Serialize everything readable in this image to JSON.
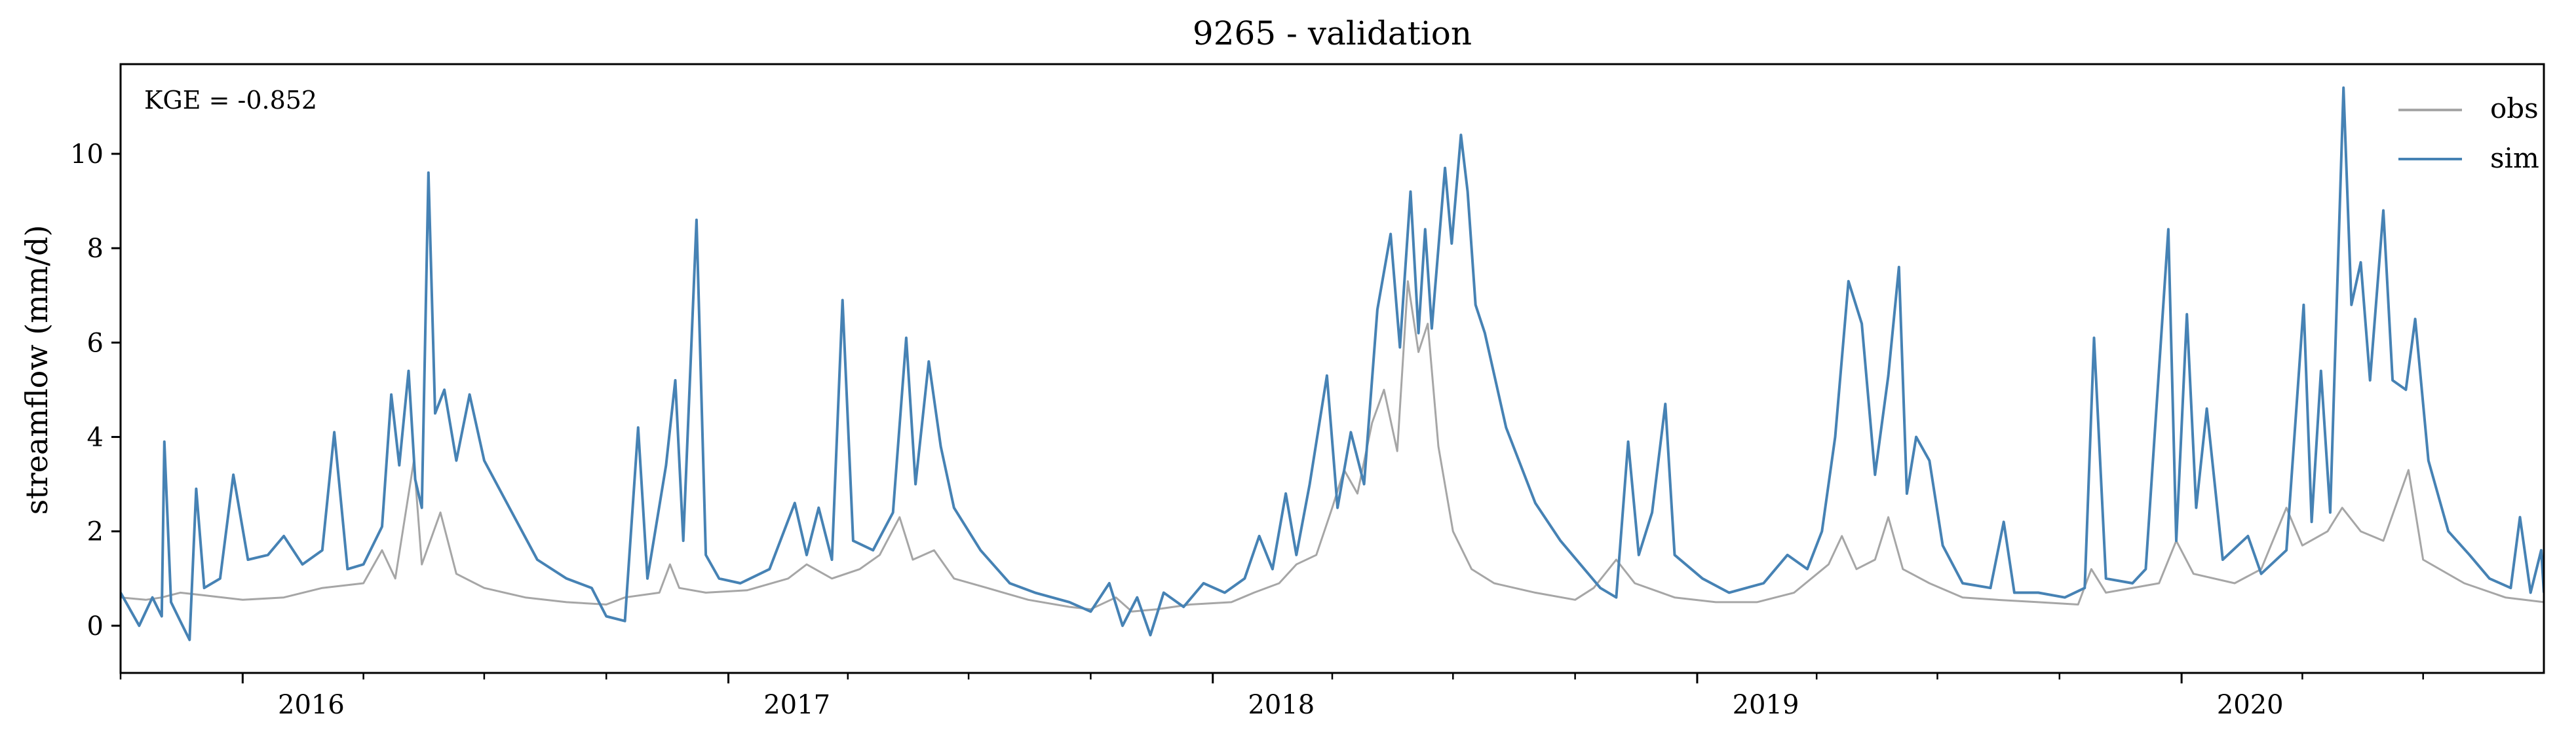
{
  "chart_data": {
    "type": "line",
    "title": "9265 - validation",
    "xlabel": "",
    "ylabel": "streamflow (mm/d)",
    "annotation": "KGE = -0.852",
    "xlim": [
      "2015-10-01",
      "2020-09-30"
    ],
    "ylim": [
      -1,
      11.9
    ],
    "yticks": [
      0,
      2,
      4,
      6,
      8,
      10
    ],
    "xtick_labels": [
      "2016",
      "2017",
      "2018",
      "2019",
      "2020"
    ],
    "xtick_dates": [
      "2016-01-01",
      "2017-01-01",
      "2018-01-01",
      "2019-01-01",
      "2020-01-01"
    ],
    "grid": false,
    "legend_position": "top-right",
    "series": [
      {
        "name": "obs",
        "color": "#a6a6a6",
        "points": [
          [
            "2015-10-01",
            0.6
          ],
          [
            "2015-10-20",
            0.55
          ],
          [
            "2015-11-01",
            0.6
          ],
          [
            "2015-11-15",
            0.7
          ],
          [
            "2015-12-01",
            0.65
          ],
          [
            "2016-01-01",
            0.55
          ],
          [
            "2016-02-01",
            0.6
          ],
          [
            "2016-03-01",
            0.8
          ],
          [
            "2016-04-01",
            0.9
          ],
          [
            "2016-04-15",
            1.6
          ],
          [
            "2016-04-25",
            1.0
          ],
          [
            "2016-05-09",
            3.5
          ],
          [
            "2016-05-15",
            1.3
          ],
          [
            "2016-05-29",
            2.4
          ],
          [
            "2016-06-10",
            1.1
          ],
          [
            "2016-07-01",
            0.8
          ],
          [
            "2016-08-01",
            0.6
          ],
          [
            "2016-09-01",
            0.5
          ],
          [
            "2016-10-01",
            0.45
          ],
          [
            "2016-10-15",
            0.6
          ],
          [
            "2016-11-10",
            0.7
          ],
          [
            "2016-11-18",
            1.3
          ],
          [
            "2016-11-25",
            0.8
          ],
          [
            "2016-12-15",
            0.7
          ],
          [
            "2017-01-15",
            0.75
          ],
          [
            "2017-02-15",
            1.0
          ],
          [
            "2017-03-01",
            1.3
          ],
          [
            "2017-03-20",
            1.0
          ],
          [
            "2017-04-10",
            1.2
          ],
          [
            "2017-04-25",
            1.5
          ],
          [
            "2017-05-10",
            2.3
          ],
          [
            "2017-05-20",
            1.4
          ],
          [
            "2017-06-05",
            1.6
          ],
          [
            "2017-06-20",
            1.0
          ],
          [
            "2017-07-15",
            0.8
          ],
          [
            "2017-08-15",
            0.55
          ],
          [
            "2017-09-15",
            0.4
          ],
          [
            "2017-10-01",
            0.35
          ],
          [
            "2017-10-20",
            0.6
          ],
          [
            "2017-11-01",
            0.3
          ],
          [
            "2017-11-20",
            0.35
          ],
          [
            "2017-12-15",
            0.45
          ],
          [
            "2018-01-15",
            0.5
          ],
          [
            "2018-02-01",
            0.7
          ],
          [
            "2018-02-20",
            0.9
          ],
          [
            "2018-03-05",
            1.3
          ],
          [
            "2018-03-20",
            1.5
          ],
          [
            "2018-04-01",
            2.5
          ],
          [
            "2018-04-10",
            3.3
          ],
          [
            "2018-04-20",
            2.8
          ],
          [
            "2018-05-01",
            4.3
          ],
          [
            "2018-05-10",
            5.0
          ],
          [
            "2018-05-20",
            3.7
          ],
          [
            "2018-05-28",
            7.3
          ],
          [
            "2018-06-05",
            5.8
          ],
          [
            "2018-06-12",
            6.4
          ],
          [
            "2018-06-20",
            3.8
          ],
          [
            "2018-07-01",
            2.0
          ],
          [
            "2018-07-15",
            1.2
          ],
          [
            "2018-08-01",
            0.9
          ],
          [
            "2018-09-01",
            0.7
          ],
          [
            "2018-10-01",
            0.55
          ],
          [
            "2018-10-15",
            0.8
          ],
          [
            "2018-11-01",
            1.4
          ],
          [
            "2018-11-15",
            0.9
          ],
          [
            "2018-12-15",
            0.6
          ],
          [
            "2019-01-15",
            0.5
          ],
          [
            "2019-02-15",
            0.5
          ],
          [
            "2019-03-15",
            0.7
          ],
          [
            "2019-04-10",
            1.3
          ],
          [
            "2019-04-20",
            1.9
          ],
          [
            "2019-05-01",
            1.2
          ],
          [
            "2019-05-15",
            1.4
          ],
          [
            "2019-05-25",
            2.3
          ],
          [
            "2019-06-05",
            1.2
          ],
          [
            "2019-06-25",
            0.9
          ],
          [
            "2019-07-20",
            0.6
          ],
          [
            "2019-08-15",
            0.55
          ],
          [
            "2019-09-15",
            0.5
          ],
          [
            "2019-10-15",
            0.45
          ],
          [
            "2019-10-25",
            1.2
          ],
          [
            "2019-11-05",
            0.7
          ],
          [
            "2019-12-15",
            0.9
          ],
          [
            "2019-12-28",
            1.8
          ],
          [
            "2020-01-10",
            1.1
          ],
          [
            "2020-02-10",
            0.9
          ],
          [
            "2020-03-01",
            1.2
          ],
          [
            "2020-03-20",
            2.5
          ],
          [
            "2020-04-01",
            1.7
          ],
          [
            "2020-04-20",
            2.0
          ],
          [
            "2020-05-01",
            2.5
          ],
          [
            "2020-05-15",
            2.0
          ],
          [
            "2020-06-01",
            1.8
          ],
          [
            "2020-06-20",
            3.3
          ],
          [
            "2020-07-01",
            1.4
          ],
          [
            "2020-08-01",
            0.9
          ],
          [
            "2020-09-01",
            0.6
          ],
          [
            "2020-09-30",
            0.5
          ]
        ]
      },
      {
        "name": "sim",
        "color": "#4682b4",
        "points": [
          [
            "2015-10-01",
            0.7
          ],
          [
            "2015-10-15",
            0.0
          ],
          [
            "2015-10-25",
            0.6
          ],
          [
            "2015-11-01",
            0.2
          ],
          [
            "2015-11-03",
            3.9
          ],
          [
            "2015-11-08",
            0.5
          ],
          [
            "2015-11-15",
            0.1
          ],
          [
            "2015-11-22",
            -0.3
          ],
          [
            "2015-11-27",
            2.9
          ],
          [
            "2015-12-03",
            0.8
          ],
          [
            "2015-12-15",
            1.0
          ],
          [
            "2015-12-25",
            3.2
          ],
          [
            "2016-01-05",
            1.4
          ],
          [
            "2016-01-20",
            1.5
          ],
          [
            "2016-02-01",
            1.9
          ],
          [
            "2016-02-15",
            1.3
          ],
          [
            "2016-03-01",
            1.6
          ],
          [
            "2016-03-10",
            4.1
          ],
          [
            "2016-03-20",
            1.2
          ],
          [
            "2016-04-01",
            1.3
          ],
          [
            "2016-04-15",
            2.1
          ],
          [
            "2016-04-22",
            4.9
          ],
          [
            "2016-04-28",
            3.4
          ],
          [
            "2016-05-05",
            5.4
          ],
          [
            "2016-05-10",
            3.1
          ],
          [
            "2016-05-15",
            2.5
          ],
          [
            "2016-05-20",
            9.6
          ],
          [
            "2016-05-25",
            4.5
          ],
          [
            "2016-06-01",
            5.0
          ],
          [
            "2016-06-10",
            3.5
          ],
          [
            "2016-06-20",
            4.9
          ],
          [
            "2016-07-01",
            3.5
          ],
          [
            "2016-07-20",
            2.5
          ],
          [
            "2016-08-10",
            1.4
          ],
          [
            "2016-09-01",
            1.0
          ],
          [
            "2016-09-20",
            0.8
          ],
          [
            "2016-10-01",
            0.2
          ],
          [
            "2016-10-15",
            0.1
          ],
          [
            "2016-10-25",
            4.2
          ],
          [
            "2016-11-01",
            1.0
          ],
          [
            "2016-11-15",
            3.4
          ],
          [
            "2016-11-22",
            5.2
          ],
          [
            "2016-11-28",
            1.8
          ],
          [
            "2016-12-08",
            8.6
          ],
          [
            "2016-12-15",
            1.5
          ],
          [
            "2016-12-25",
            1.0
          ],
          [
            "2017-01-10",
            0.9
          ],
          [
            "2017-02-01",
            1.2
          ],
          [
            "2017-02-20",
            2.6
          ],
          [
            "2017-03-01",
            1.5
          ],
          [
            "2017-03-10",
            2.5
          ],
          [
            "2017-03-20",
            1.4
          ],
          [
            "2017-03-28",
            6.9
          ],
          [
            "2017-04-05",
            1.8
          ],
          [
            "2017-04-20",
            1.6
          ],
          [
            "2017-05-05",
            2.4
          ],
          [
            "2017-05-15",
            6.1
          ],
          [
            "2017-05-22",
            3.0
          ],
          [
            "2017-06-01",
            5.6
          ],
          [
            "2017-06-10",
            3.8
          ],
          [
            "2017-06-20",
            2.5
          ],
          [
            "2017-07-10",
            1.6
          ],
          [
            "2017-08-01",
            0.9
          ],
          [
            "2017-08-20",
            0.7
          ],
          [
            "2017-09-15",
            0.5
          ],
          [
            "2017-10-01",
            0.3
          ],
          [
            "2017-10-15",
            0.9
          ],
          [
            "2017-10-25",
            0.0
          ],
          [
            "2017-11-05",
            0.6
          ],
          [
            "2017-11-15",
            -0.2
          ],
          [
            "2017-11-25",
            0.7
          ],
          [
            "2017-12-10",
            0.4
          ],
          [
            "2017-12-25",
            0.9
          ],
          [
            "2018-01-10",
            0.7
          ],
          [
            "2018-01-25",
            1.0
          ],
          [
            "2018-02-05",
            1.9
          ],
          [
            "2018-02-15",
            1.2
          ],
          [
            "2018-02-25",
            2.8
          ],
          [
            "2018-03-05",
            1.5
          ],
          [
            "2018-03-15",
            3.0
          ],
          [
            "2018-03-28",
            5.3
          ],
          [
            "2018-04-05",
            2.5
          ],
          [
            "2018-04-15",
            4.1
          ],
          [
            "2018-04-25",
            3.0
          ],
          [
            "2018-05-05",
            6.7
          ],
          [
            "2018-05-15",
            8.3
          ],
          [
            "2018-05-22",
            5.9
          ],
          [
            "2018-05-30",
            9.2
          ],
          [
            "2018-06-05",
            6.2
          ],
          [
            "2018-06-10",
            8.4
          ],
          [
            "2018-06-15",
            6.3
          ],
          [
            "2018-06-25",
            9.7
          ],
          [
            "2018-06-30",
            8.1
          ],
          [
            "2018-07-07",
            10.4
          ],
          [
            "2018-07-12",
            9.2
          ],
          [
            "2018-07-18",
            6.8
          ],
          [
            "2018-07-25",
            6.2
          ],
          [
            "2018-08-10",
            4.2
          ],
          [
            "2018-09-01",
            2.6
          ],
          [
            "2018-09-20",
            1.8
          ],
          [
            "2018-10-05",
            1.3
          ],
          [
            "2018-10-20",
            0.8
          ],
          [
            "2018-11-01",
            0.6
          ],
          [
            "2018-11-10",
            3.9
          ],
          [
            "2018-11-18",
            1.5
          ],
          [
            "2018-11-28",
            2.4
          ],
          [
            "2018-12-08",
            4.7
          ],
          [
            "2018-12-15",
            1.5
          ],
          [
            "2019-01-05",
            1.0
          ],
          [
            "2019-01-25",
            0.7
          ],
          [
            "2019-02-20",
            0.9
          ],
          [
            "2019-03-10",
            1.5
          ],
          [
            "2019-03-25",
            1.2
          ],
          [
            "2019-04-05",
            2.0
          ],
          [
            "2019-04-15",
            4.0
          ],
          [
            "2019-04-25",
            7.3
          ],
          [
            "2019-05-05",
            6.4
          ],
          [
            "2019-05-15",
            3.2
          ],
          [
            "2019-05-25",
            5.3
          ],
          [
            "2019-06-02",
            7.6
          ],
          [
            "2019-06-08",
            2.8
          ],
          [
            "2019-06-15",
            4.0
          ],
          [
            "2019-06-25",
            3.5
          ],
          [
            "2019-07-05",
            1.7
          ],
          [
            "2019-07-20",
            0.9
          ],
          [
            "2019-08-10",
            0.8
          ],
          [
            "2019-08-20",
            2.2
          ],
          [
            "2019-08-28",
            0.7
          ],
          [
            "2019-09-15",
            0.7
          ],
          [
            "2019-10-05",
            0.6
          ],
          [
            "2019-10-20",
            0.8
          ],
          [
            "2019-10-27",
            6.1
          ],
          [
            "2019-11-05",
            1.0
          ],
          [
            "2019-11-25",
            0.9
          ],
          [
            "2019-12-05",
            1.2
          ],
          [
            "2019-12-22",
            8.4
          ],
          [
            "2019-12-28",
            1.8
          ],
          [
            "2020-01-05",
            6.6
          ],
          [
            "2020-01-12",
            2.5
          ],
          [
            "2020-01-20",
            4.6
          ],
          [
            "2020-02-01",
            1.4
          ],
          [
            "2020-02-20",
            1.9
          ],
          [
            "2020-03-01",
            1.1
          ],
          [
            "2020-03-20",
            1.6
          ],
          [
            "2020-04-02",
            6.8
          ],
          [
            "2020-04-08",
            2.2
          ],
          [
            "2020-04-15",
            5.4
          ],
          [
            "2020-04-22",
            2.4
          ],
          [
            "2020-05-02",
            11.4
          ],
          [
            "2020-05-08",
            6.8
          ],
          [
            "2020-05-15",
            7.7
          ],
          [
            "2020-05-22",
            5.2
          ],
          [
            "2020-06-01",
            8.8
          ],
          [
            "2020-06-08",
            5.2
          ],
          [
            "2020-06-18",
            5.0
          ],
          [
            "2020-06-25",
            6.5
          ],
          [
            "2020-07-05",
            3.5
          ],
          [
            "2020-07-20",
            2.0
          ],
          [
            "2020-08-05",
            1.5
          ],
          [
            "2020-08-20",
            1.0
          ],
          [
            "2020-09-05",
            0.8
          ],
          [
            "2020-09-12",
            2.3
          ],
          [
            "2020-09-20",
            0.7
          ],
          [
            "2020-09-28",
            1.6
          ],
          [
            "2020-09-30",
            0.7
          ]
        ]
      }
    ]
  }
}
